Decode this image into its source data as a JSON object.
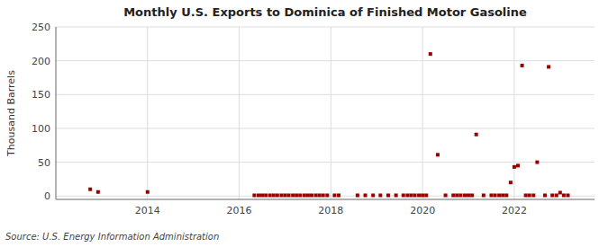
{
  "chart_data": {
    "type": "scatter",
    "title": "Monthly U.S. Exports to Dominica of Finished Motor Gasoline",
    "ylabel": "Thousand Barrels",
    "annotations": [
      "Source: U.S. Energy Information Administration"
    ],
    "color": "#990000",
    "marker": "square",
    "grid": true,
    "x": [
      2012.75,
      2012.92,
      2014.0,
      2016.33,
      2016.42,
      2016.5,
      2016.58,
      2016.67,
      2016.75,
      2016.83,
      2016.92,
      2017.0,
      2017.08,
      2017.17,
      2017.25,
      2017.33,
      2017.42,
      2017.5,
      2017.58,
      2017.67,
      2017.75,
      2017.83,
      2017.92,
      2018.08,
      2018.17,
      2018.58,
      2018.75,
      2018.92,
      2019.08,
      2019.25,
      2019.42,
      2019.58,
      2019.67,
      2019.75,
      2019.83,
      2019.92,
      2020.0,
      2020.08,
      2020.17,
      2020.33,
      2020.5,
      2020.67,
      2020.75,
      2020.83,
      2020.92,
      2021.0,
      2021.08,
      2021.17,
      2021.33,
      2021.5,
      2021.58,
      2021.67,
      2021.75,
      2021.83,
      2021.92,
      2022.0,
      2022.08,
      2022.17,
      2022.25,
      2022.33,
      2022.42,
      2022.5,
      2022.67,
      2022.75,
      2022.83,
      2022.92,
      2023.0,
      2023.08,
      2023.17
    ],
    "values": [
      10,
      6,
      6,
      1,
      1,
      1,
      1,
      1,
      1,
      1,
      1,
      1,
      1,
      1,
      1,
      1,
      1,
      1,
      1,
      1,
      1,
      1,
      1,
      1,
      1,
      1,
      1,
      1,
      1,
      1,
      1,
      1,
      1,
      1,
      1,
      1,
      1,
      1,
      210,
      61,
      1,
      1,
      1,
      1,
      1,
      1,
      1,
      91,
      1,
      1,
      1,
      1,
      1,
      1,
      20,
      43,
      45,
      193,
      1,
      1,
      1,
      50,
      1,
      191,
      1,
      1,
      5,
      1,
      1
    ],
    "xlim": [
      2012.0,
      2023.75
    ],
    "xticks": [
      2014,
      2016,
      2018,
      2020,
      2022
    ],
    "ylim": [
      -5,
      250
    ],
    "yticks": [
      0,
      50,
      100,
      150,
      200,
      250
    ]
  }
}
